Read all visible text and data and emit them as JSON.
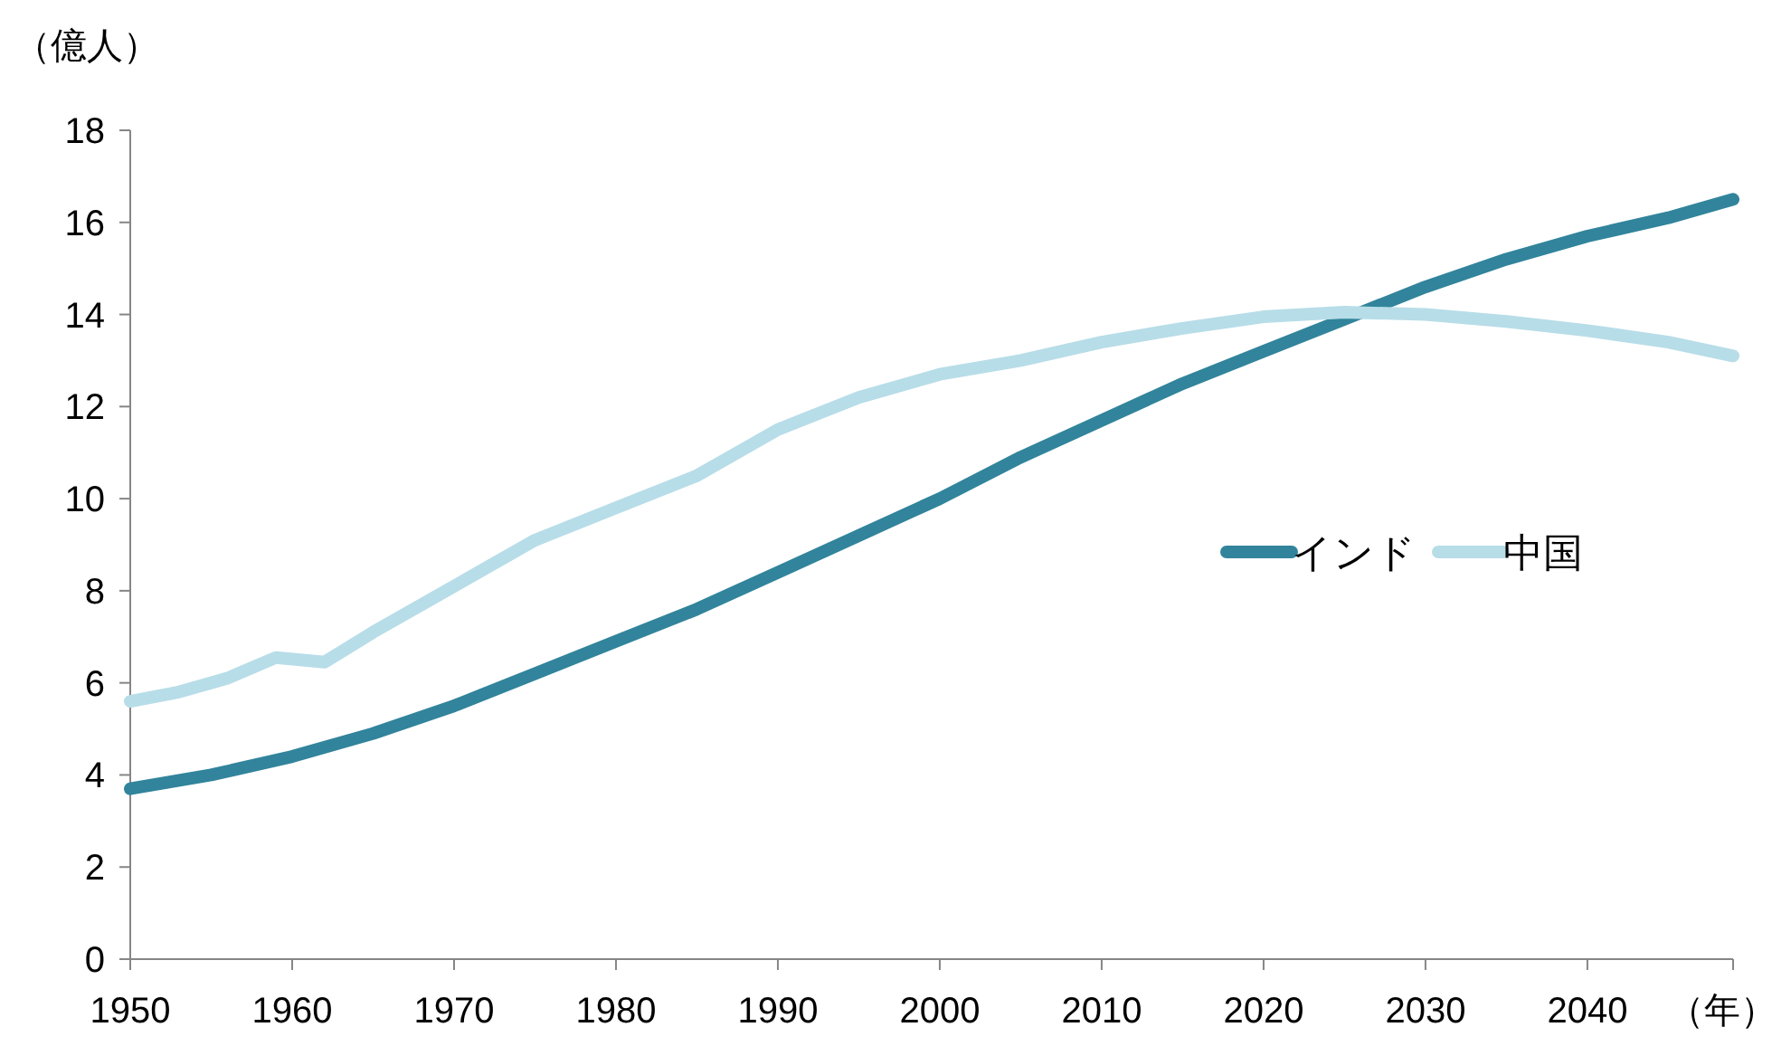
{
  "chart_data": {
    "type": "line",
    "ylabel": "（億人）",
    "xlabel": "（年）",
    "xlim": [
      1950,
      2049
    ],
    "xticks": [
      1950,
      1960,
      1970,
      1980,
      1990,
      2000,
      2010,
      2020,
      2030,
      2040
    ],
    "ylim": [
      0,
      18
    ],
    "yticks": [
      0,
      2,
      4,
      6,
      8,
      10,
      12,
      14,
      16,
      18
    ],
    "grid": false,
    "legend": "right",
    "marker": "none",
    "line_style": "solid",
    "series": [
      {
        "name": "インド",
        "color": "#31849b",
        "x": [
          1950,
          1955,
          1960,
          1965,
          1970,
          1975,
          1980,
          1985,
          1990,
          1995,
          2000,
          2005,
          2010,
          2015,
          2020,
          2025,
          2030,
          2035,
          2040,
          2045,
          2049
        ],
        "values": [
          3.7,
          4.0,
          4.4,
          4.9,
          5.5,
          6.2,
          6.9,
          7.6,
          8.4,
          9.2,
          10.0,
          10.9,
          11.7,
          12.5,
          13.2,
          13.9,
          14.6,
          15.2,
          15.7,
          16.1,
          16.5
        ]
      },
      {
        "name": "中国",
        "color": "#b7dde8",
        "x": [
          1950,
          1953,
          1956,
          1959,
          1962,
          1965,
          1970,
          1975,
          1980,
          1985,
          1990,
          1995,
          2000,
          2005,
          2010,
          2015,
          2020,
          2025,
          2030,
          2035,
          2040,
          2045,
          2049
        ],
        "values": [
          5.6,
          5.8,
          6.1,
          6.55,
          6.45,
          7.1,
          8.1,
          9.1,
          9.8,
          10.5,
          11.5,
          12.2,
          12.7,
          13.0,
          13.4,
          13.7,
          13.95,
          14.05,
          14.0,
          13.85,
          13.65,
          13.4,
          13.1
        ]
      }
    ]
  }
}
